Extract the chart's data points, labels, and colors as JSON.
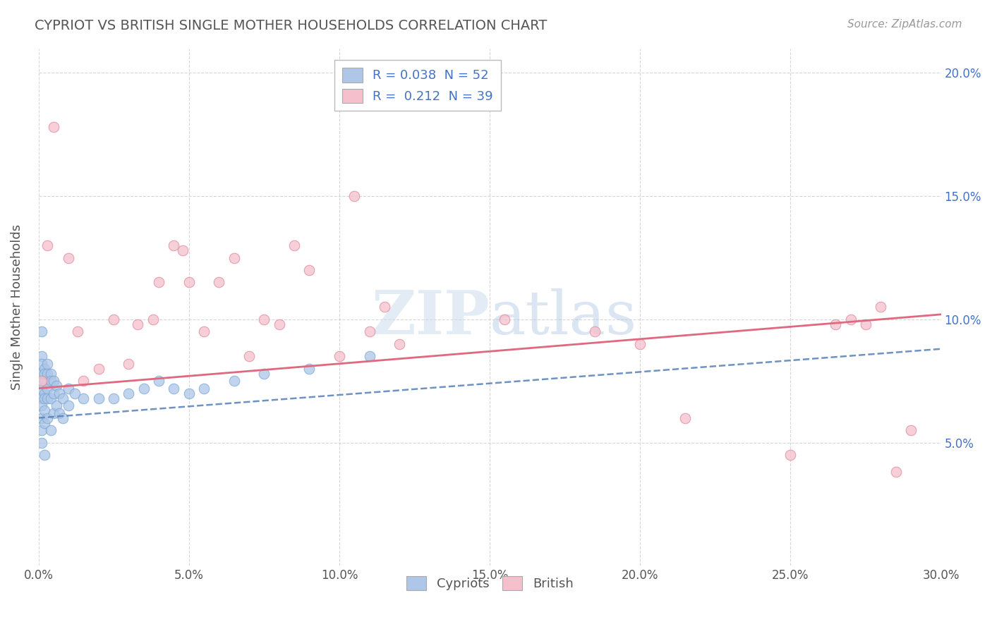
{
  "title": "CYPRIOT VS BRITISH SINGLE MOTHER HOUSEHOLDS CORRELATION CHART",
  "source": "Source: ZipAtlas.com",
  "ylabel": "Single Mother Households",
  "xlim": [
    0.0,
    0.3
  ],
  "ylim": [
    0.0,
    0.21
  ],
  "x_ticks": [
    0.0,
    0.05,
    0.1,
    0.15,
    0.2,
    0.25,
    0.3
  ],
  "x_tick_labels": [
    "0.0%",
    "5.0%",
    "10.0%",
    "15.0%",
    "20.0%",
    "25.0%",
    "30.0%"
  ],
  "y_ticks": [
    0.05,
    0.1,
    0.15,
    0.2
  ],
  "y_tick_labels": [
    "5.0%",
    "10.0%",
    "15.0%",
    "20.0%"
  ],
  "legend_r_cypriot": "0.038",
  "legend_n_cypriot": "52",
  "legend_r_british": "0.212",
  "legend_n_british": "39",
  "cypriot_color": "#aec6e8",
  "cypriot_edge_color": "#7aa8d4",
  "cypriot_line_color": "#5580b8",
  "british_color": "#f5c0cc",
  "british_edge_color": "#e08898",
  "british_line_color": "#e06880",
  "background_color": "#ffffff",
  "grid_color": "#cccccc",
  "cypriot_x": [
    0.001,
    0.001,
    0.001,
    0.001,
    0.001,
    0.001,
    0.001,
    0.001,
    0.001,
    0.001,
    0.002,
    0.002,
    0.002,
    0.002,
    0.002,
    0.002,
    0.002,
    0.002,
    0.003,
    0.003,
    0.003,
    0.003,
    0.003,
    0.004,
    0.004,
    0.004,
    0.004,
    0.005,
    0.005,
    0.005,
    0.006,
    0.006,
    0.007,
    0.007,
    0.008,
    0.008,
    0.01,
    0.01,
    0.012,
    0.015,
    0.02,
    0.025,
    0.03,
    0.035,
    0.04,
    0.045,
    0.05,
    0.055,
    0.065,
    0.075,
    0.09,
    0.11
  ],
  "cypriot_y": [
    0.095,
    0.085,
    0.082,
    0.078,
    0.072,
    0.068,
    0.065,
    0.06,
    0.055,
    0.05,
    0.08,
    0.078,
    0.075,
    0.07,
    0.068,
    0.063,
    0.058,
    0.045,
    0.082,
    0.078,
    0.072,
    0.068,
    0.06,
    0.078,
    0.075,
    0.068,
    0.055,
    0.075,
    0.07,
    0.062,
    0.073,
    0.065,
    0.07,
    0.062,
    0.068,
    0.06,
    0.072,
    0.065,
    0.07,
    0.068,
    0.068,
    0.068,
    0.07,
    0.072,
    0.075,
    0.072,
    0.07,
    0.072,
    0.075,
    0.078,
    0.08,
    0.085
  ],
  "british_x": [
    0.001,
    0.003,
    0.005,
    0.01,
    0.013,
    0.015,
    0.02,
    0.025,
    0.03,
    0.033,
    0.038,
    0.04,
    0.045,
    0.048,
    0.05,
    0.055,
    0.06,
    0.065,
    0.07,
    0.075,
    0.08,
    0.085,
    0.09,
    0.1,
    0.105,
    0.11,
    0.115,
    0.12,
    0.155,
    0.185,
    0.2,
    0.215,
    0.25,
    0.265,
    0.27,
    0.275,
    0.28,
    0.285,
    0.29
  ],
  "british_y": [
    0.075,
    0.13,
    0.178,
    0.125,
    0.095,
    0.075,
    0.08,
    0.1,
    0.082,
    0.098,
    0.1,
    0.115,
    0.13,
    0.128,
    0.115,
    0.095,
    0.115,
    0.125,
    0.085,
    0.1,
    0.098,
    0.13,
    0.12,
    0.085,
    0.15,
    0.095,
    0.105,
    0.09,
    0.1,
    0.095,
    0.09,
    0.06,
    0.045,
    0.098,
    0.1,
    0.098,
    0.105,
    0.038,
    0.055
  ],
  "cypriot_trend_x": [
    0.0,
    0.3
  ],
  "cypriot_trend_y": [
    0.06,
    0.088
  ],
  "british_trend_x": [
    0.0,
    0.3
  ],
  "british_trend_y": [
    0.072,
    0.102
  ]
}
